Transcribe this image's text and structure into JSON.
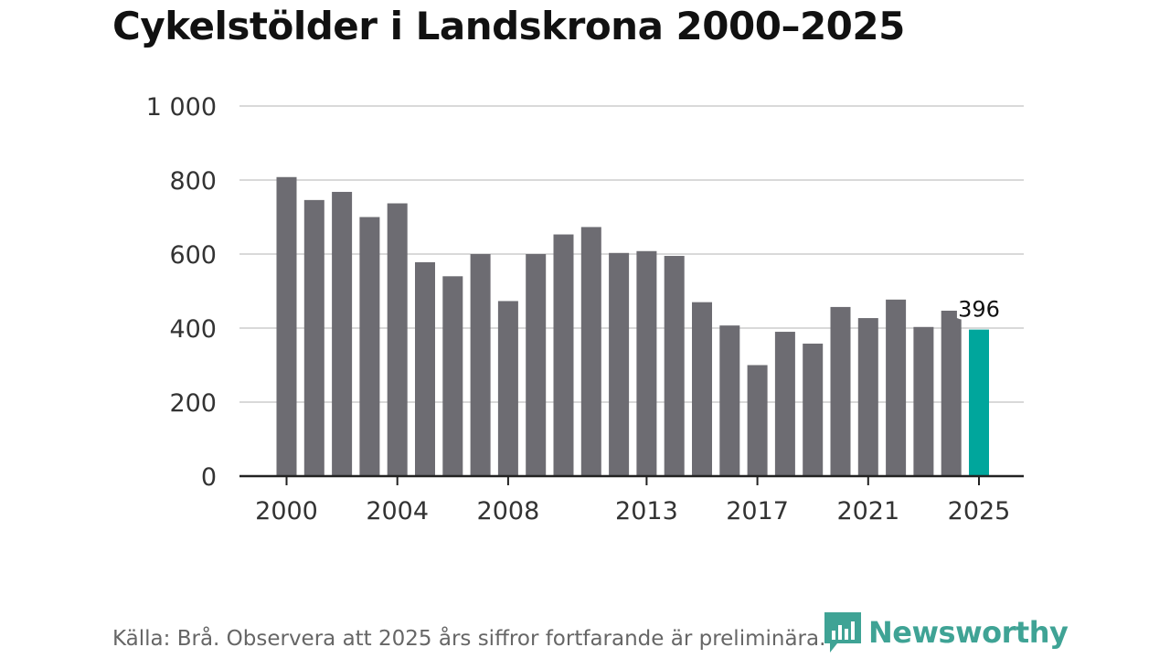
{
  "title": "Cykelstölder i Landskrona 2000–2025",
  "source_note": "Källa: Brå. Observera att 2025 års siffror fortfarande är preliminära.",
  "brand": {
    "name": "Newsworthy",
    "icon": "newsworthy-logo-icon"
  },
  "colors": {
    "bar": "#6d6c72",
    "highlight": "#00a69c",
    "grid": "#d9d9d9",
    "axis": "#222222",
    "brand": "#2b9a8a"
  },
  "chart_data": {
    "type": "bar",
    "title": "Cykelstölder i Landskrona 2000–2025",
    "xlabel": "",
    "ylabel": "",
    "ylim": [
      0,
      1000
    ],
    "yticks": [
      0,
      200,
      400,
      600,
      800,
      1000
    ],
    "ytick_labels": [
      "0",
      "200",
      "400",
      "600",
      "800",
      "1 000"
    ],
    "xtick_labels": [
      "2000",
      "2004",
      "2008",
      "2013",
      "2017",
      "2021",
      "2025"
    ],
    "grid": true,
    "categories": [
      "2000",
      "2001",
      "2002",
      "2003",
      "2004",
      "2005",
      "2006",
      "2007",
      "2008",
      "2009",
      "2010",
      "2011",
      "2012",
      "2013",
      "2014",
      "2015",
      "2016",
      "2017",
      "2018",
      "2019",
      "2020",
      "2021",
      "2022",
      "2023",
      "2024",
      "2025"
    ],
    "values": [
      808,
      746,
      768,
      700,
      737,
      578,
      540,
      600,
      473,
      600,
      653,
      673,
      603,
      608,
      595,
      470,
      407,
      300,
      390,
      358,
      457,
      427,
      477,
      403,
      447,
      396
    ],
    "highlight_index": 25,
    "data_labels": [
      {
        "index": 25,
        "text": "396"
      }
    ]
  }
}
